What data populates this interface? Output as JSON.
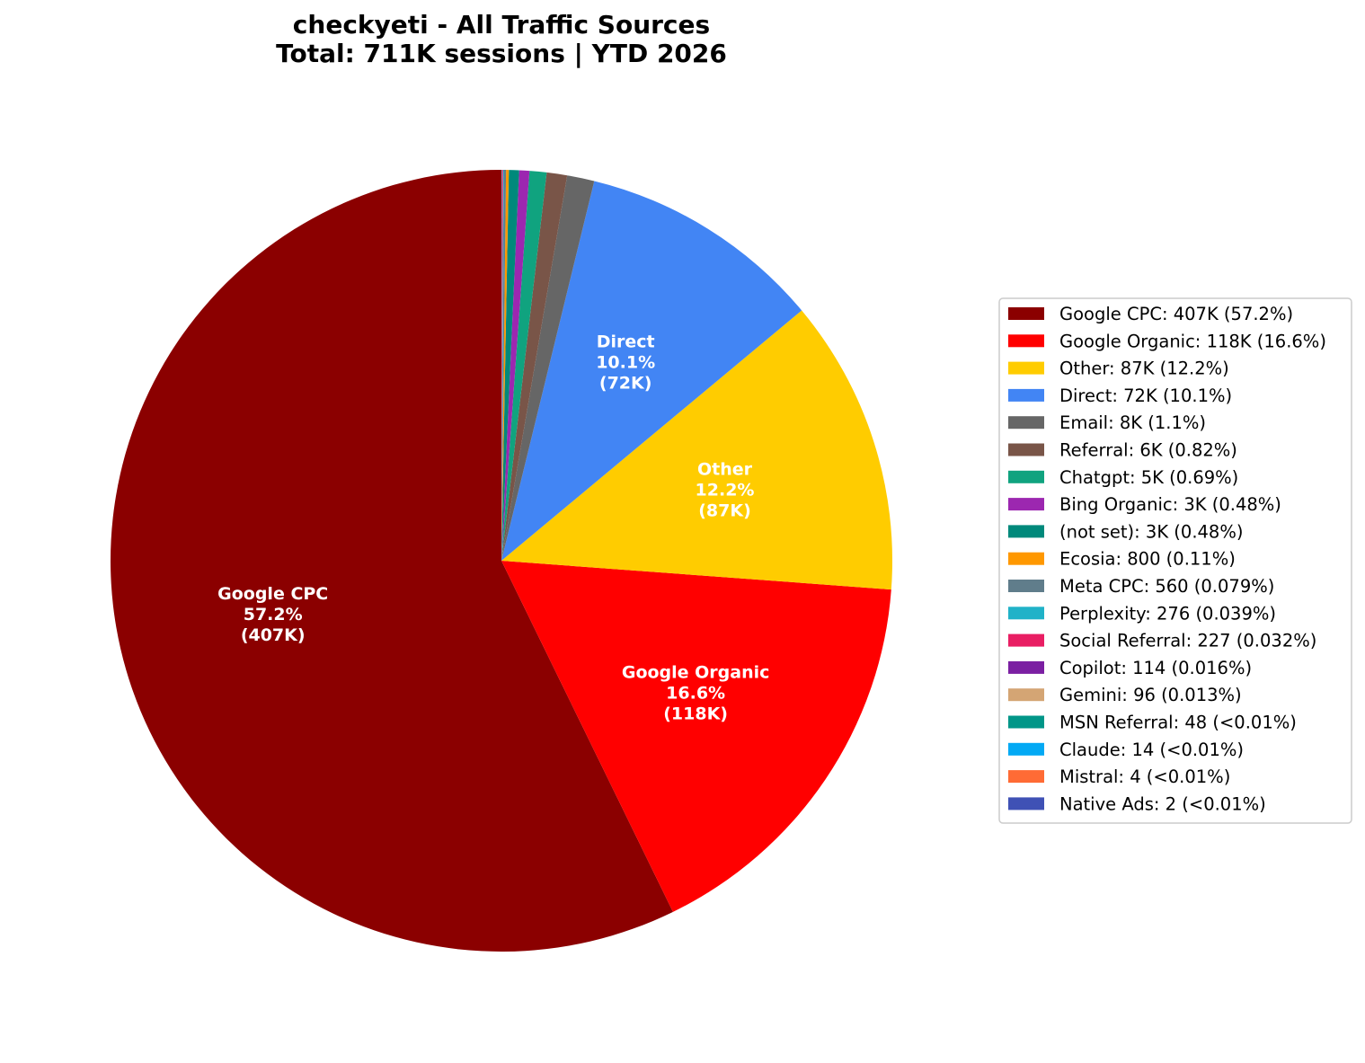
{
  "chart_data": {
    "type": "pie",
    "title": [
      "checkyeti - All Traffic Sources",
      "Total: 711K sessions | YTD 2026"
    ],
    "slices": [
      {
        "name": "Google CPC",
        "value": 407000,
        "percent": 57.2,
        "color": "#8b0000",
        "legend": "Google CPC: 407K (57.2%)",
        "label": [
          "Google CPC",
          "57.2%",
          "(407K)"
        ]
      },
      {
        "name": "Google Organic",
        "value": 118000,
        "percent": 16.6,
        "color": "#ff0000",
        "legend": "Google Organic: 118K (16.6%)",
        "label": [
          "Google Organic",
          "16.6%",
          "(118K)"
        ]
      },
      {
        "name": "Other",
        "value": 87000,
        "percent": 12.2,
        "color": "#ffcc00",
        "legend": "Other: 87K (12.2%)",
        "label": [
          "Other",
          "12.2%",
          "(87K)"
        ]
      },
      {
        "name": "Direct",
        "value": 72000,
        "percent": 10.1,
        "color": "#4285f4",
        "legend": "Direct: 72K (10.1%)",
        "label": [
          "Direct",
          "10.1%",
          "(72K)"
        ]
      },
      {
        "name": "Email",
        "value": 8000,
        "percent": 1.1,
        "color": "#666666",
        "legend": "Email: 8K (1.1%)"
      },
      {
        "name": "Referral",
        "value": 6000,
        "percent": 0.82,
        "color": "#795548",
        "legend": "Referral: 6K (0.82%)"
      },
      {
        "name": "Chatgpt",
        "value": 5000,
        "percent": 0.69,
        "color": "#10a37f",
        "legend": "Chatgpt: 5K (0.69%)"
      },
      {
        "name": "Bing Organic",
        "value": 3000,
        "percent": 0.48,
        "color": "#9c27b0",
        "legend": "Bing Organic: 3K (0.48%)"
      },
      {
        "name": "(not set)",
        "value": 3000,
        "percent": 0.48,
        "color": "#00897b",
        "legend": "(not set): 3K (0.48%)"
      },
      {
        "name": "Ecosia",
        "value": 800,
        "percent": 0.11,
        "color": "#ff9800",
        "legend": "Ecosia: 800 (0.11%)"
      },
      {
        "name": "Meta CPC",
        "value": 560,
        "percent": 0.079,
        "color": "#607d8b",
        "legend": "Meta CPC: 560 (0.079%)"
      },
      {
        "name": "Perplexity",
        "value": 276,
        "percent": 0.039,
        "color": "#20b2c8",
        "legend": "Perplexity: 276 (0.039%)"
      },
      {
        "name": "Social Referral",
        "value": 227,
        "percent": 0.032,
        "color": "#e91e63",
        "legend": "Social Referral: 227 (0.032%)"
      },
      {
        "name": "Copilot",
        "value": 114,
        "percent": 0.016,
        "color": "#7b1fa2",
        "legend": "Copilot: 114 (0.016%)"
      },
      {
        "name": "Gemini",
        "value": 96,
        "percent": 0.013,
        "color": "#d4a574",
        "legend": "Gemini: 96 (0.013%)"
      },
      {
        "name": "MSN Referral",
        "value": 48,
        "percent": 0.007,
        "color": "#009688",
        "legend": "MSN Referral: 48 (<0.01%)"
      },
      {
        "name": "Claude",
        "value": 14,
        "percent": 0.002,
        "color": "#03a9f4",
        "legend": "Claude: 14 (<0.01%)"
      },
      {
        "name": "Mistral",
        "value": 4,
        "percent": 0.0006,
        "color": "#ff6b35",
        "legend": "Mistral: 4 (<0.01%)"
      },
      {
        "name": "Native Ads",
        "value": 2,
        "percent": 0.0003,
        "color": "#3f51b5",
        "legend": "Native Ads: 2 (<0.01%)"
      }
    ],
    "start_angle": "top, counter-clockwise",
    "legend_position": "right"
  }
}
